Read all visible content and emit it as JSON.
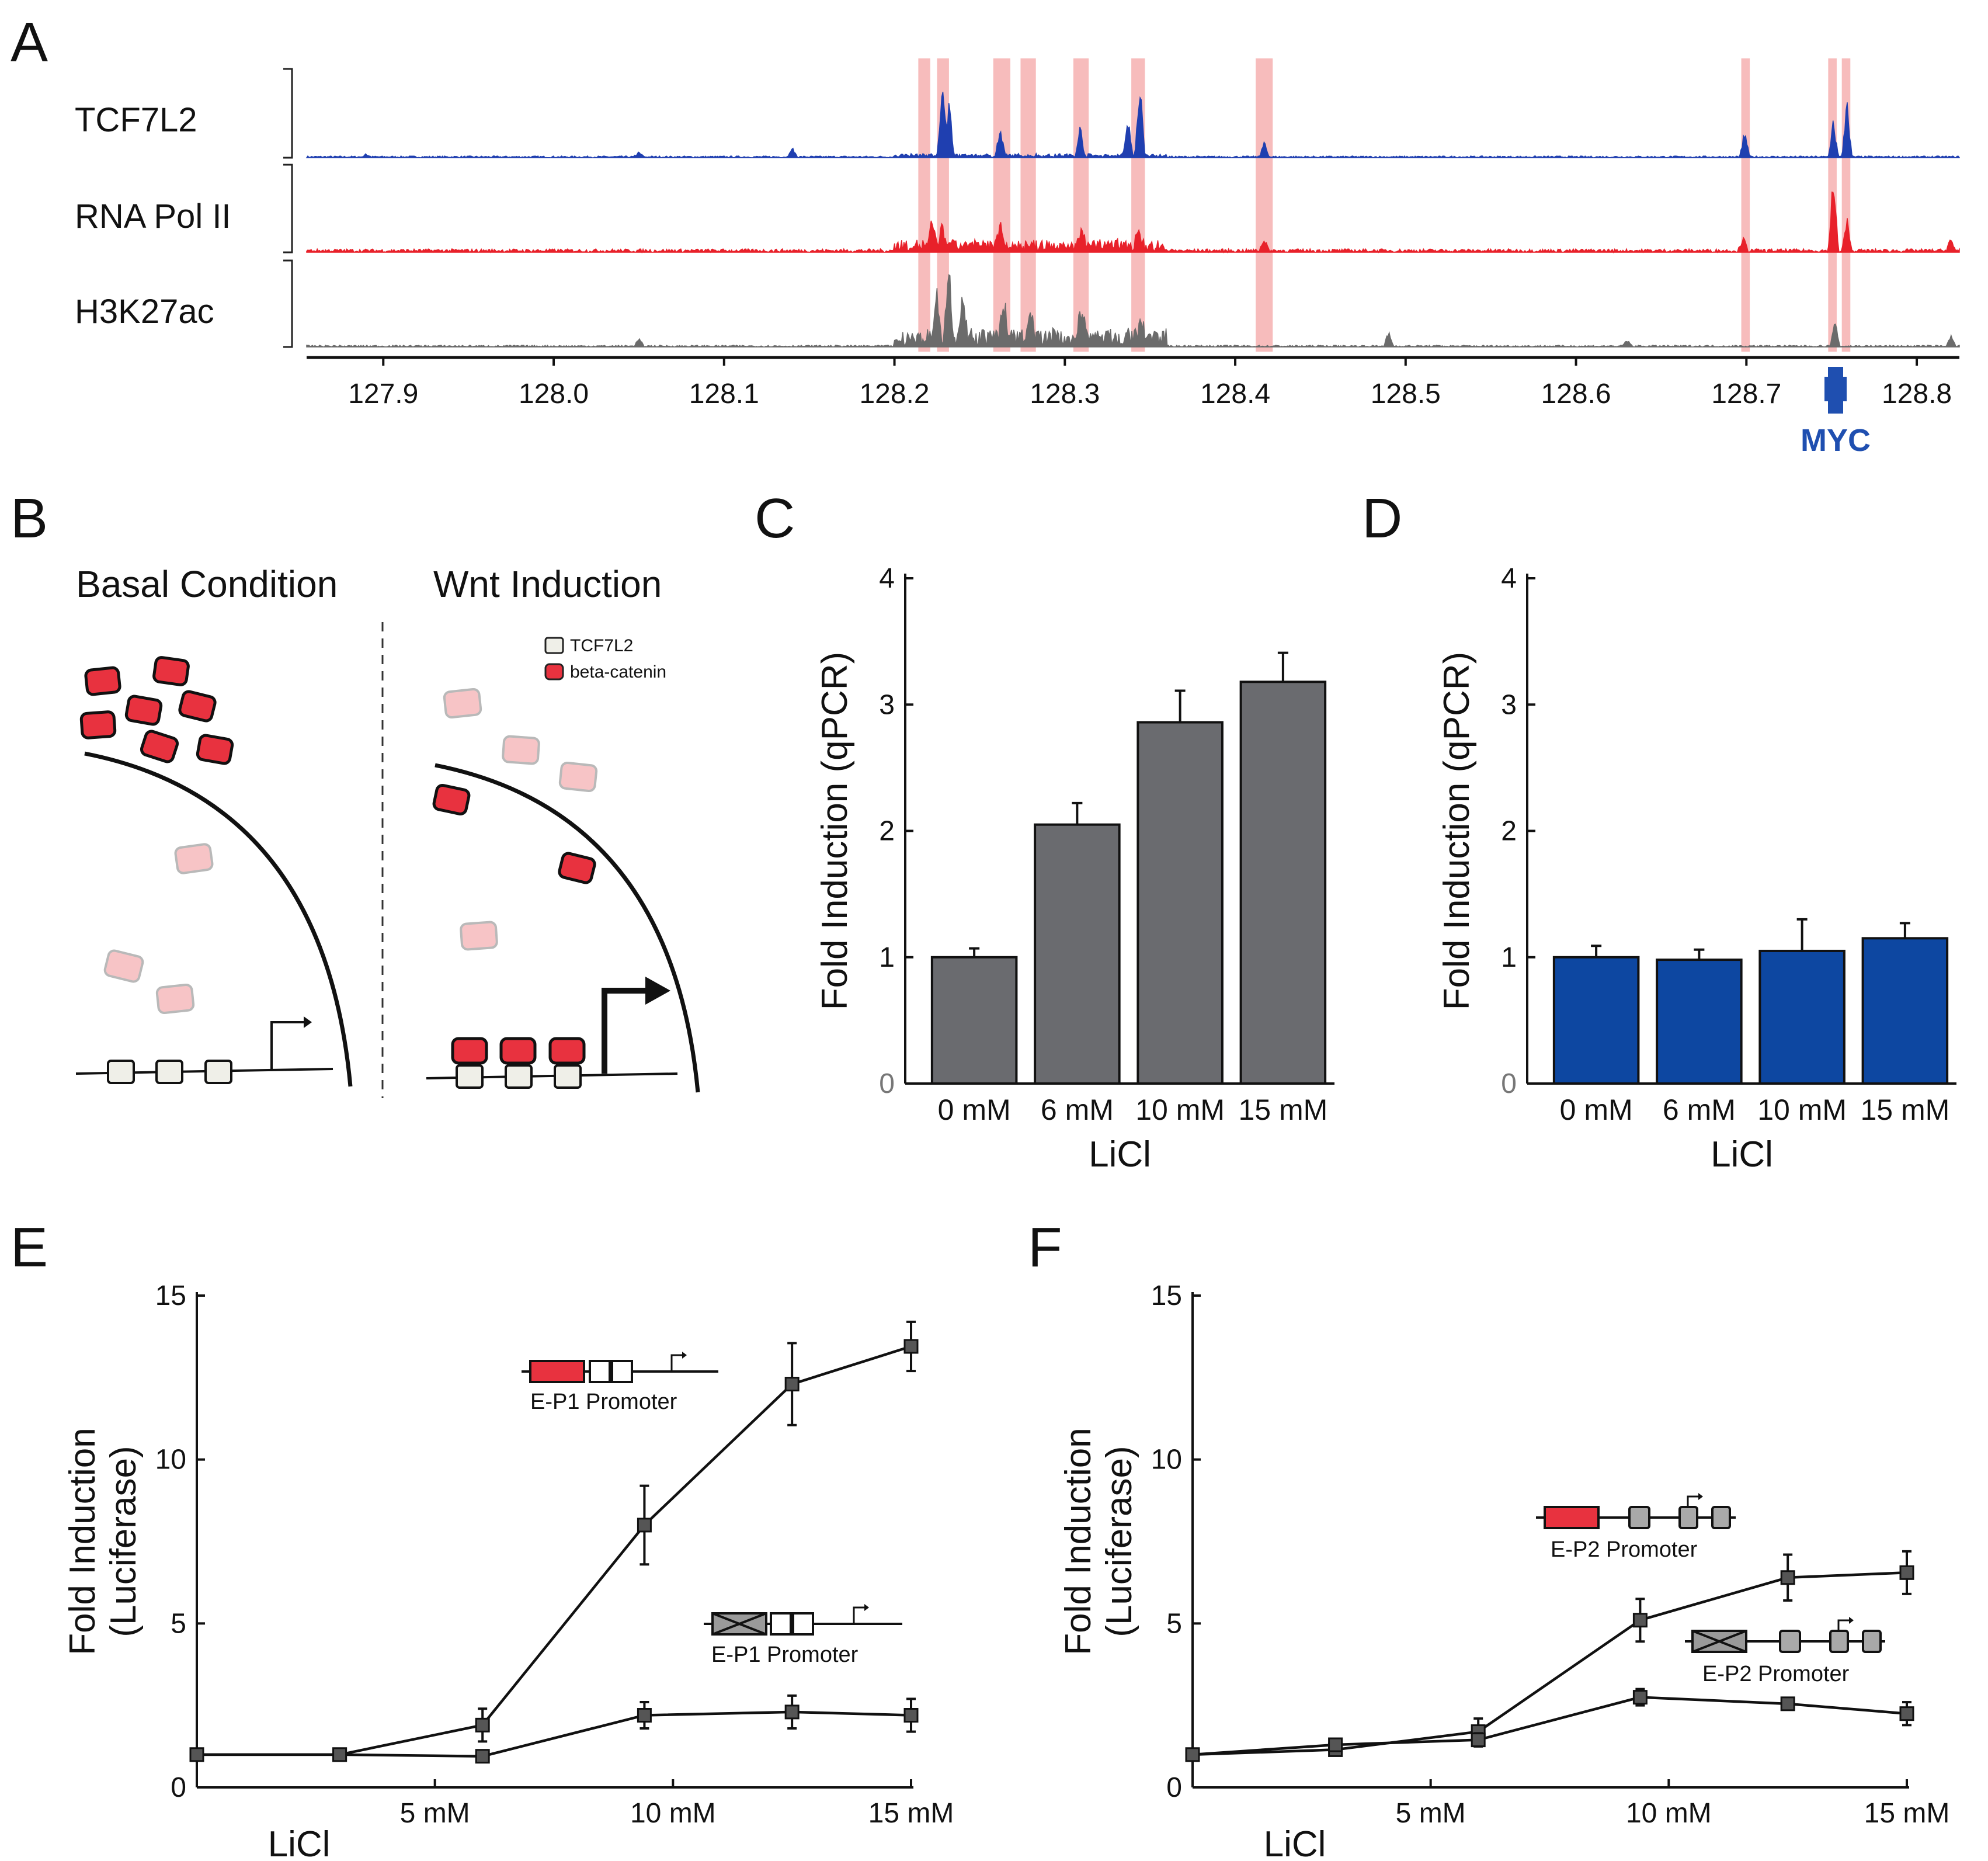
{
  "figure": {
    "panel_letters": [
      "A",
      "B",
      "C",
      "D",
      "E",
      "F"
    ]
  },
  "panel_a": {
    "tracks": [
      {
        "name": "TCF7L2",
        "color": "#1f3fb0"
      },
      {
        "name": "RNA Pol II",
        "color": "#e8212a"
      },
      {
        "name": "H3K27ac",
        "color": "#6b6b6b"
      }
    ],
    "axis_ticks": [
      "127.9",
      "128.0",
      "128.1",
      "128.2",
      "128.3",
      "128.4",
      "128.5",
      "128.6",
      "128.7",
      "128.8"
    ],
    "axis_range": [
      127.855,
      128.825
    ],
    "highlight_color": "#f4a5a5",
    "highlights": [
      [
        128.214,
        128.221
      ],
      [
        128.225,
        128.232
      ],
      [
        128.258,
        128.268
      ],
      [
        128.274,
        128.283
      ],
      [
        128.305,
        128.314
      ],
      [
        128.339,
        128.347
      ],
      [
        128.412,
        128.422
      ],
      [
        128.697,
        128.702
      ],
      [
        128.748,
        128.753
      ],
      [
        128.756,
        128.761
      ]
    ],
    "gene": {
      "name": "MYC",
      "position": 128.753,
      "color": "#1f4fb0"
    }
  },
  "panel_b": {
    "left_title": "Basal Condition",
    "right_title": "Wnt Induction",
    "legend": [
      {
        "label": "TCF7L2",
        "color": "#efefe8"
      },
      {
        "label": "beta-catenin",
        "color": "#e8323f"
      }
    ]
  },
  "chart_data": [
    {
      "id": "C",
      "type": "bar",
      "categories": [
        "0 mM",
        "6 mM",
        "10 mM",
        "15 mM"
      ],
      "values": [
        1.0,
        2.05,
        2.86,
        3.18
      ],
      "errors": [
        0.07,
        0.17,
        0.25,
        0.23
      ],
      "xlabel": "LiCl",
      "ylabel": "Fold Induction (qPCR)",
      "ylim": [
        0,
        4
      ],
      "yticks": [
        "0",
        "1",
        "2",
        "3",
        "4"
      ],
      "bar_color": "#6a6b6f"
    },
    {
      "id": "D",
      "type": "bar",
      "categories": [
        "0 mM",
        "6 mM",
        "10 mM",
        "15 mM"
      ],
      "values": [
        1.0,
        0.98,
        1.05,
        1.15
      ],
      "errors": [
        0.09,
        0.08,
        0.25,
        0.12
      ],
      "xlabel": "LiCl",
      "ylabel": "Fold Induction (qPCR)",
      "ylim": [
        0,
        4
      ],
      "yticks": [
        "0",
        "1",
        "2",
        "3",
        "4"
      ],
      "bar_color": "#0d47a1"
    },
    {
      "id": "E",
      "type": "line",
      "xlabel": "LiCl",
      "ylabel_lines": [
        "Fold Induction",
        "(Luciferase)"
      ],
      "xlim": [
        0,
        15
      ],
      "ylim": [
        0,
        15
      ],
      "xticks": [
        {
          "value": 5,
          "label": "5 mM"
        },
        {
          "value": 10,
          "label": "10 mM"
        },
        {
          "value": 15,
          "label": "15 mM"
        }
      ],
      "yticks": [
        "0",
        "5",
        "10",
        "15"
      ],
      "series": [
        {
          "label": "E-P1 Promoter",
          "x": [
            0,
            3,
            6,
            9.4,
            12.5,
            15
          ],
          "y": [
            1.0,
            1.0,
            1.9,
            8.0,
            12.3,
            13.45
          ],
          "err": [
            0.1,
            0.15,
            0.5,
            1.2,
            1.25,
            0.75
          ]
        },
        {
          "label": "E-P1 Promoter",
          "x": [
            0,
            3,
            6,
            9.4,
            12.5,
            15
          ],
          "y": [
            1.0,
            1.0,
            0.95,
            2.2,
            2.3,
            2.2
          ],
          "err": [
            0.1,
            0.15,
            0.1,
            0.4,
            0.5,
            0.5
          ]
        }
      ]
    },
    {
      "id": "F",
      "type": "line",
      "xlabel": "LiCl",
      "ylabel_lines": [
        "Fold Induction",
        "(Luciferase)"
      ],
      "xlim": [
        0,
        15
      ],
      "ylim": [
        0,
        15
      ],
      "xticks": [
        {
          "value": 5,
          "label": "5 mM"
        },
        {
          "value": 10,
          "label": "10 mM"
        },
        {
          "value": 15,
          "label": "15 mM"
        }
      ],
      "yticks": [
        "0",
        "5",
        "10",
        "15"
      ],
      "series": [
        {
          "label": "E-P2 Promoter",
          "x": [
            0,
            3,
            6,
            9.4,
            12.5,
            15
          ],
          "y": [
            1.0,
            1.15,
            1.7,
            5.1,
            6.4,
            6.55
          ],
          "err": [
            0.1,
            0.15,
            0.4,
            0.65,
            0.7,
            0.65
          ]
        },
        {
          "label": "E-P2 Promoter",
          "x": [
            0,
            3,
            6,
            9.4,
            12.5,
            15
          ],
          "y": [
            1.0,
            1.3,
            1.45,
            2.75,
            2.55,
            2.25
          ],
          "err": [
            0.1,
            0.15,
            0.2,
            0.25,
            0.15,
            0.35
          ]
        }
      ]
    }
  ]
}
